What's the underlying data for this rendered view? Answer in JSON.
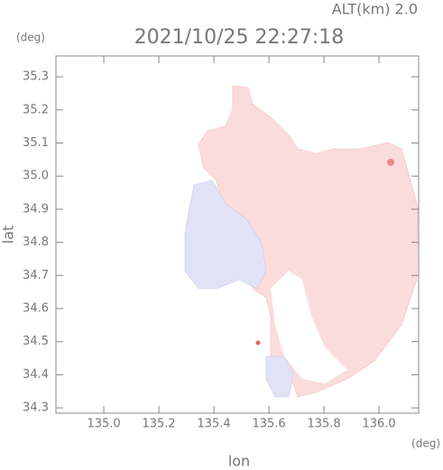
{
  "chart_data": {
    "type": "map",
    "title": "2021/10/25 22:27:18",
    "annotation": "ALT(km) 2.0",
    "x_label": "lon",
    "y_label": "lat",
    "x_unit": "(deg)",
    "y_unit": "(deg)",
    "xlim": [
      134.826,
      136.144
    ],
    "ylim": [
      34.284,
      35.363
    ],
    "xticks": [
      {
        "value": 135,
        "label": "135.0"
      },
      135.2,
      135.4,
      135.6,
      135.8,
      {
        "value": 136,
        "label": "136.0"
      }
    ],
    "yticks": [
      34.3,
      34.4,
      34.5,
      34.6,
      34.7,
      34.8,
      34.9,
      {
        "value": 35,
        "label": "35.0"
      },
      35.1,
      35.2,
      35.3
    ]
  }
}
